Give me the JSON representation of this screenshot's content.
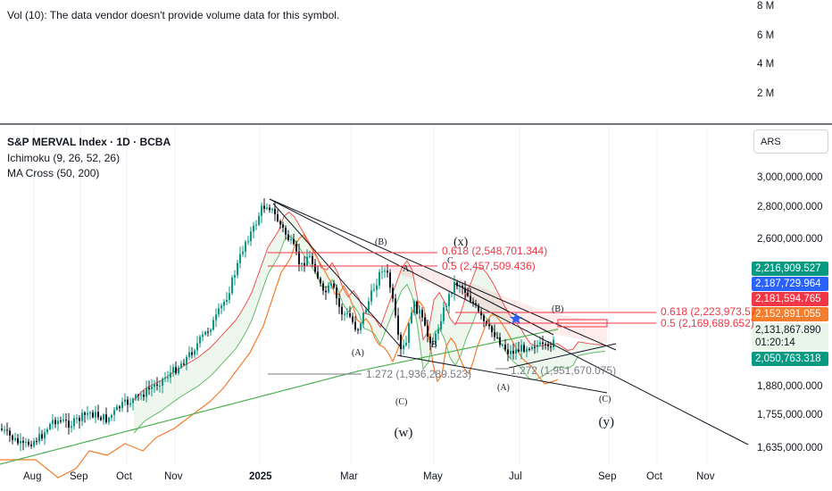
{
  "volume_pane": {
    "notice": "Vol (10): The data vendor doesn't provide volume data for this symbol.",
    "axis_ticks": [
      "8 M",
      "6 M",
      "4 M",
      "2 M"
    ]
  },
  "legend": {
    "title": "S&P MERVAL Index · 1D · BCBA",
    "ichimoku": "Ichimoku (9, 26, 52, 26)",
    "ma_cross": "MA Cross (50, 200)"
  },
  "currency_button": "ARS",
  "colors": {
    "up": "#089981",
    "down": "#131722",
    "ma50": "#f57c2b",
    "ma200": "#4caf50",
    "fib": "#f23645",
    "trend": "#131722",
    "blue": "#2962ff"
  },
  "chart_data": {
    "type": "candlestick",
    "title": "S&P MERVAL Index · 1D · BCBA",
    "y_axis_ticks": [
      "3,000,000.000",
      "2,800,000.000",
      "2,600,000.000",
      "1,880,000.000",
      "1,755,000.000",
      "1,635,000.000"
    ],
    "y_axis_tick_values": [
      3000000,
      2800000,
      2600000,
      1880000,
      1755000,
      1635000
    ],
    "x_axis_ticks": [
      "Aug",
      "Sep",
      "Oct",
      "Nov",
      "2025",
      "Mar",
      "May",
      "Jul",
      "Sep",
      "Oct",
      "Nov"
    ],
    "price_badges": [
      {
        "label": "2,216,909.527",
        "color": "#089981"
      },
      {
        "label": "2,187,729.964",
        "color": "#2962ff"
      },
      {
        "label": "2,181,594.765",
        "color": "#f23645"
      },
      {
        "label": "2,152,891.055",
        "color": "#f57c2b"
      },
      {
        "label": "2,131,867.890",
        "color": "#e8f5e9",
        "text_color": "#131722"
      },
      {
        "label": "01:20:14",
        "color": "#e8f5e9",
        "text_color": "#131722"
      },
      {
        "label": "2,050,763.318",
        "color": "#089981"
      }
    ],
    "fib_levels": [
      {
        "label": "0.618 (2,548,701.344)",
        "value": 2548701.344
      },
      {
        "label": "0.5 (2,457,509.436)",
        "value": 2457509.436
      },
      {
        "label": "0.618 (2,223,973.57",
        "value": 2223973.57
      },
      {
        "label": "0.5 (2,169,689.652)",
        "value": 2169689.652
      },
      {
        "label": "1.272 (1,936,289.523)",
        "value": 1936289.523
      },
      {
        "label": "1.272 (1,951,670.075)",
        "value": 1951670.075
      }
    ],
    "wave_labels": [
      "(B)",
      "(x)",
      "A",
      "C",
      "(A)",
      "B",
      "(C)",
      "(w)",
      "(B)",
      "(A)",
      "(C)",
      "(y)"
    ],
    "last_price": 2131867.89
  }
}
